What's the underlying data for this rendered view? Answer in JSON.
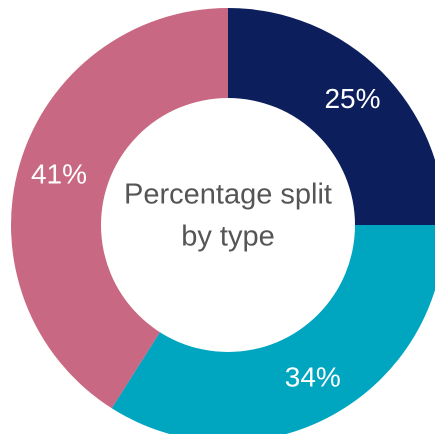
{
  "chart_data": {
    "type": "pie",
    "variant": "donut",
    "center_text": {
      "line1": "Percentage split",
      "line2": "by type"
    },
    "slices": [
      {
        "value": 25,
        "label": "25%",
        "color": "#0c1f5c"
      },
      {
        "value": 34,
        "label": "34%",
        "color": "#00a5c0"
      },
      {
        "value": 41,
        "label": "41%",
        "color": "#c86882"
      }
    ],
    "start_angle_deg": 0,
    "direction": "clockwise",
    "legend": "none"
  }
}
